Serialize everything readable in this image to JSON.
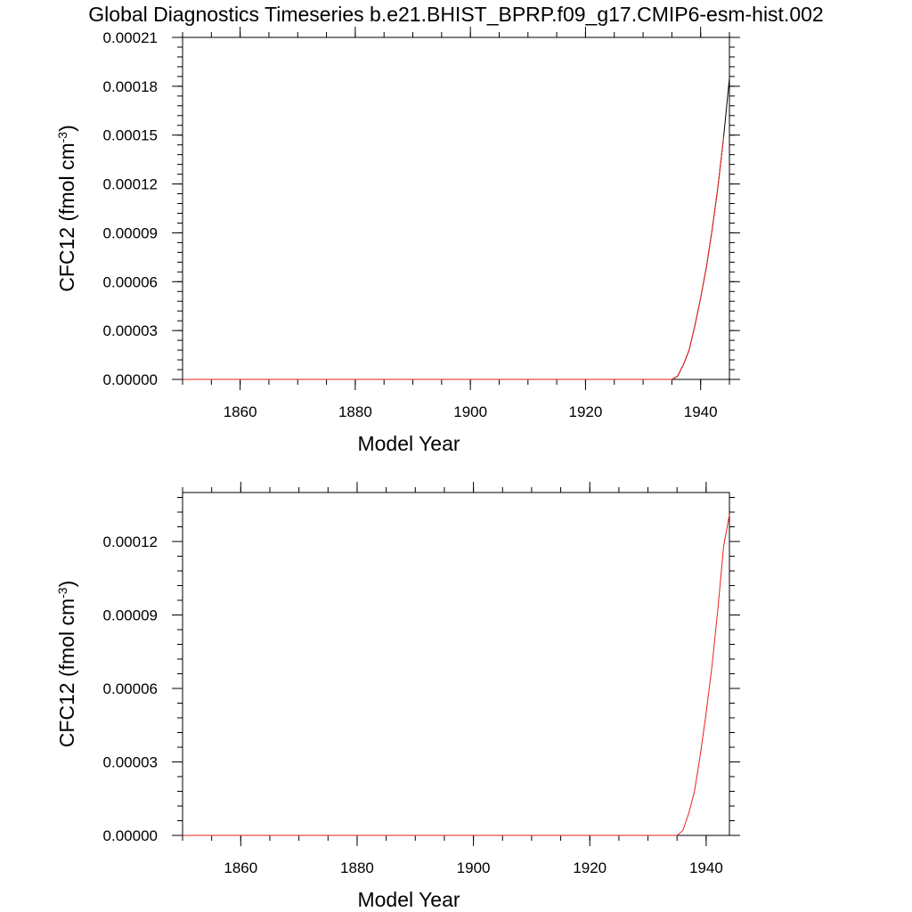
{
  "figure": {
    "title": "Global Diagnostics Timeseries b.e21.BHIST_BPRP.f09_g17.CMIP6-esm-hist.002"
  },
  "chart_data": [
    {
      "type": "line",
      "title": "",
      "xlabel": "Model Year",
      "ylabel": "CFC12 (fmol cm",
      "ylabel_superscript": "-3",
      "ylabel_suffix": ")",
      "xlim": [
        1850,
        1945
      ],
      "ylim": [
        0,
        0.00021
      ],
      "x_ticks": [
        1860,
        1880,
        1900,
        1920,
        1940
      ],
      "y_ticks": [
        0,
        3e-05,
        6e-05,
        9e-05,
        0.00012,
        0.00015,
        0.00018,
        0.00021
      ],
      "y_tick_labels": [
        "0.00000",
        "0.00003",
        "0.00006",
        "0.00009",
        "0.00012",
        "0.00015",
        "0.00018",
        "0.00021"
      ],
      "grid": false,
      "legend": "none",
      "series": [
        {
          "color": "#000000",
          "x": [
            1850,
            1935,
            1936,
            1937,
            1938,
            1939,
            1940,
            1941,
            1942,
            1943,
            1944,
            1945
          ],
          "y": [
            0,
            0,
            2e-06,
            9e-06,
            1.8e-05,
            3.3e-05,
            5e-05,
            6.9e-05,
            9.2e-05,
            0.000118,
            0.000149,
            0.000185
          ]
        },
        {
          "color": "#e8211b",
          "x": [
            1850,
            1935,
            1936,
            1937,
            1938,
            1939,
            1940,
            1941,
            1942,
            1943,
            1944
          ],
          "y": [
            0,
            0,
            2e-06,
            9e-06,
            1.8e-05,
            3.3e-05,
            5e-05,
            6.9e-05,
            9.2e-05,
            0.000118,
            0.000149
          ]
        }
      ]
    },
    {
      "type": "line",
      "title": "",
      "xlabel": "Model Year",
      "ylabel": "CFC12 (fmol cm",
      "ylabel_superscript": "-3",
      "ylabel_suffix": ")",
      "xlim": [
        1850,
        1944
      ],
      "ylim": [
        0,
        0.00014
      ],
      "x_ticks": [
        1860,
        1880,
        1900,
        1920,
        1940
      ],
      "y_ticks": [
        0,
        3e-05,
        6e-05,
        9e-05,
        0.00012
      ],
      "y_tick_labels": [
        "0.00000",
        "0.00003",
        "0.00006",
        "0.00009",
        "0.00012"
      ],
      "grid": false,
      "legend": "none",
      "series": [
        {
          "color": "#e8211b",
          "x": [
            1850,
            1935,
            1936,
            1937,
            1938,
            1939,
            1940,
            1941,
            1942,
            1943,
            1944
          ],
          "y": [
            0,
            0,
            2e-06,
            9e-06,
            1.8e-05,
            3.3e-05,
            5e-05,
            6.9e-05,
            9.2e-05,
            0.000118,
            0.000131
          ]
        }
      ]
    }
  ]
}
